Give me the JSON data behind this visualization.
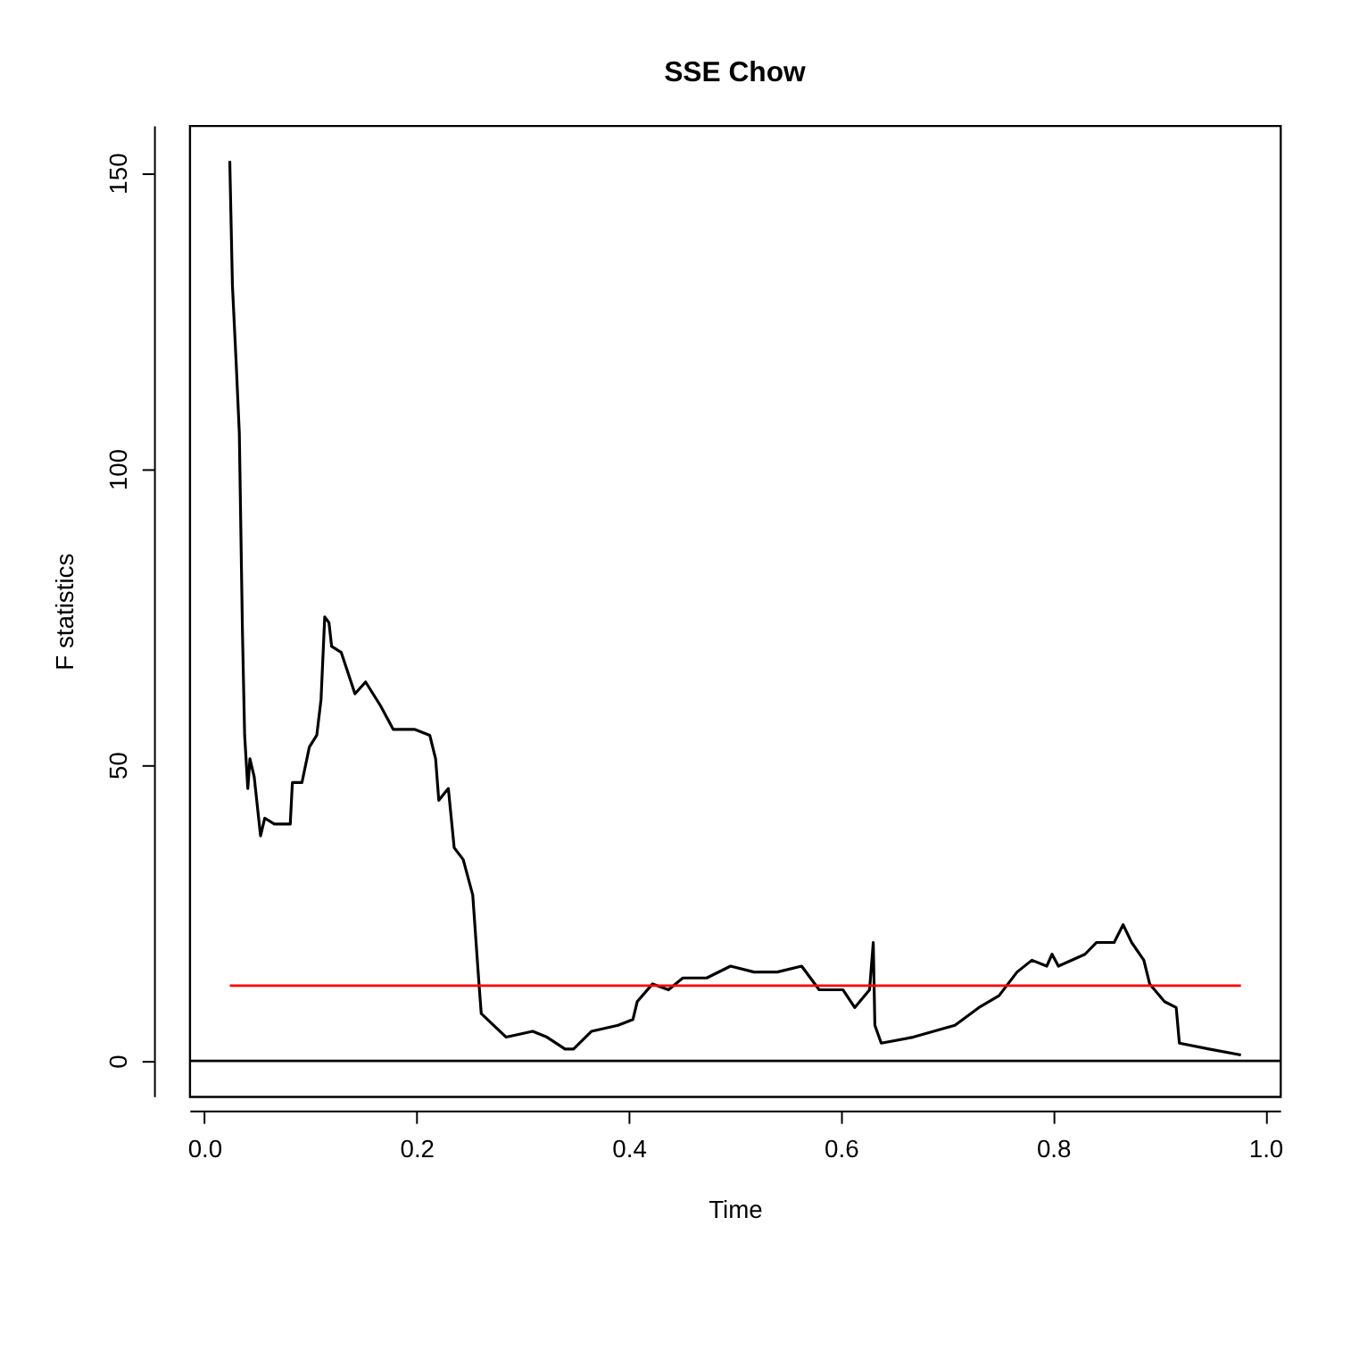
{
  "chart_data": {
    "type": "line",
    "title": "SSE Chow",
    "xlabel": "Time",
    "ylabel": "F statistics",
    "x": [
      0.024,
      0.0265,
      0.03,
      0.033,
      0.036,
      0.038,
      0.041,
      0.043,
      0.047,
      0.053,
      0.057,
      0.066,
      0.081,
      0.083,
      0.092,
      0.099,
      0.106,
      0.11,
      0.1135,
      0.1175,
      0.12,
      0.129,
      0.142,
      0.152,
      0.166,
      0.178,
      0.198,
      0.2125,
      0.218,
      0.221,
      0.23,
      0.2355,
      0.244,
      0.253,
      0.2585,
      0.261,
      0.2845,
      0.3095,
      0.323,
      0.34,
      0.348,
      0.365,
      0.39,
      0.404,
      0.408,
      0.4225,
      0.4375,
      0.451,
      0.4735,
      0.496,
      0.518,
      0.54,
      0.563,
      0.5795,
      0.602,
      0.613,
      0.627,
      0.6305,
      0.632,
      0.638,
      0.668,
      0.7075,
      0.73,
      0.749,
      0.766,
      0.78,
      0.794,
      0.799,
      0.805,
      0.83,
      0.841,
      0.8575,
      0.866,
      0.874,
      0.8855,
      0.891,
      0.905,
      0.916,
      0.919,
      0.947,
      0.977
    ],
    "series": [
      {
        "color": "#000000",
        "line_style": "solid",
        "values": [
          152,
          131,
          118,
          106,
          72,
          55,
          46,
          51,
          48,
          38,
          41,
          40,
          40,
          47,
          47,
          53,
          55,
          61,
          75,
          74,
          70,
          69,
          62,
          64,
          60,
          56,
          56,
          55,
          51,
          44,
          46,
          36,
          34,
          28,
          14,
          8,
          4,
          5,
          4,
          2,
          2,
          5,
          6,
          7,
          10,
          13,
          12,
          14,
          14,
          16,
          15,
          15,
          16,
          12,
          12,
          9,
          12,
          20,
          6,
          3,
          4,
          6,
          9,
          11,
          15,
          17,
          16,
          18,
          16,
          18,
          20,
          20,
          23,
          20,
          17,
          13,
          10,
          9,
          3,
          2,
          1
        ]
      }
    ],
    "xlim": [
      -0.014,
      1.014
    ],
    "ylim": [
      -6,
      158
    ],
    "xticks": [
      {
        "value": 0,
        "label": "0.0"
      },
      {
        "value": 0.2,
        "label": "0.2"
      },
      {
        "value": 0.4,
        "label": "0.4"
      },
      {
        "value": 0.6,
        "label": "0.6"
      },
      {
        "value": 0.8,
        "label": "0.8"
      },
      {
        "value": 1,
        "label": "1.0"
      }
    ],
    "yticks": [
      0,
      50,
      100,
      150
    ],
    "ref_lines": [
      {
        "axis": "y",
        "value": 0,
        "color": "#000000"
      },
      {
        "axis": "y",
        "value": 12.7,
        "color": "#ff0000"
      }
    ],
    "grid": false
  }
}
